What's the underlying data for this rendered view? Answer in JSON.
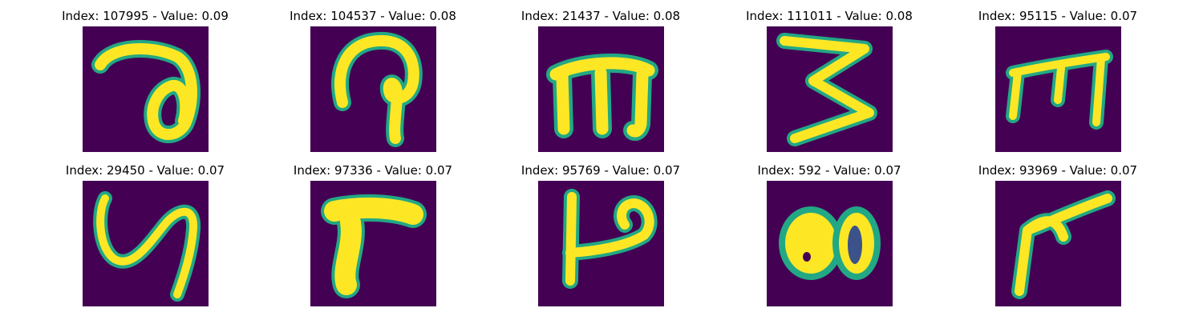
{
  "figure": {
    "background_color": "#440154",
    "stroke_color": "#fde725",
    "edge_color": "#22a884",
    "panels": [
      {
        "title": "Index: 107995 - Value: 0.09",
        "glyph": "curl-o"
      },
      {
        "title": "Index: 104537 - Value: 0.08",
        "glyph": "hook-p"
      },
      {
        "title": "Index: 21437 - Value: 0.08",
        "glyph": "m"
      },
      {
        "title": "Index: 111011 - Value: 0.08",
        "glyph": "zigzag-3"
      },
      {
        "title": "Index: 95115 - Value: 0.07",
        "glyph": "m-thin"
      },
      {
        "title": "Index: 29450 - Value: 0.07",
        "glyph": "y-curve"
      },
      {
        "title": "Index: 97336 - Value: 0.07",
        "glyph": "r-bold"
      },
      {
        "title": "Index: 95769 - Value: 0.07",
        "glyph": "h-loop"
      },
      {
        "title": "Index: 592 - Value: 0.07",
        "glyph": "double-o"
      },
      {
        "title": "Index: 93969 - Value: 0.07",
        "glyph": "r-diagonal"
      }
    ]
  }
}
